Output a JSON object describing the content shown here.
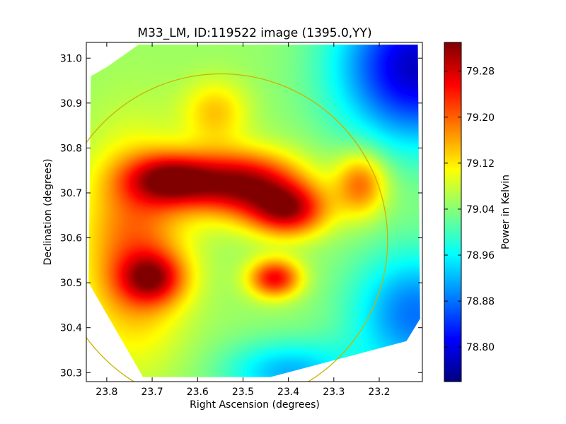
{
  "chart_data": {
    "type": "heatmap",
    "title": "M33_LM, ID:119522 image (1395.0,YY)",
    "xlabel": "Right Ascension (degrees)",
    "ylabel": "Declination (degrees)",
    "xlim": [
      23.845,
      23.105
    ],
    "ylim": [
      30.28,
      31.035
    ],
    "x_ticks": [
      {
        "value": 23.8,
        "label": "23.8"
      },
      {
        "value": 23.7,
        "label": "23.7"
      },
      {
        "value": 23.6,
        "label": "23.6"
      },
      {
        "value": 23.5,
        "label": "23.5"
      },
      {
        "value": 23.4,
        "label": "23.4"
      },
      {
        "value": 23.3,
        "label": "23.3"
      },
      {
        "value": 23.2,
        "label": "23.2"
      }
    ],
    "y_ticks": [
      {
        "value": 31.0,
        "label": "31.0"
      },
      {
        "value": 30.9,
        "label": "30.9"
      },
      {
        "value": 30.8,
        "label": "30.8"
      },
      {
        "value": 30.7,
        "label": "30.7"
      },
      {
        "value": 30.6,
        "label": "30.6"
      },
      {
        "value": 30.5,
        "label": "30.5"
      },
      {
        "value": 30.4,
        "label": "30.4"
      },
      {
        "value": 30.3,
        "label": "30.3"
      }
    ],
    "colorbar": {
      "label": "Power in Kelvin",
      "vmin": 78.74,
      "vmax": 79.33,
      "colormap": "jet",
      "ticks": [
        {
          "value": 79.28,
          "label": "79.28"
        },
        {
          "value": 79.2,
          "label": "79.20"
        },
        {
          "value": 79.12,
          "label": "79.12"
        },
        {
          "value": 79.04,
          "label": "79.04"
        },
        {
          "value": 78.96,
          "label": "78.96"
        },
        {
          "value": 78.88,
          "label": "78.88"
        },
        {
          "value": 78.8,
          "label": "78.80"
        }
      ]
    },
    "base_level": 79.05,
    "features": [
      {
        "ra": 23.5,
        "dec": 30.72,
        "value": 79.31,
        "sx": 0.09,
        "sy": 0.05
      },
      {
        "ra": 23.66,
        "dec": 30.73,
        "value": 79.27,
        "sx": 0.07,
        "sy": 0.04
      },
      {
        "ra": 23.4,
        "dec": 30.66,
        "value": 79.27,
        "sx": 0.06,
        "sy": 0.04
      },
      {
        "ra": 23.74,
        "dec": 30.58,
        "value": 79.2,
        "sx": 0.08,
        "sy": 0.16
      },
      {
        "ra": 23.43,
        "dec": 30.51,
        "value": 79.26,
        "sx": 0.04,
        "sy": 0.03
      },
      {
        "ra": 23.7,
        "dec": 30.51,
        "value": 79.23,
        "sx": 0.05,
        "sy": 0.04
      },
      {
        "ra": 23.56,
        "dec": 30.88,
        "value": 79.14,
        "sx": 0.05,
        "sy": 0.05
      },
      {
        "ra": 23.24,
        "dec": 30.72,
        "value": 79.2,
        "sx": 0.04,
        "sy": 0.05
      },
      {
        "ra": 23.12,
        "dec": 30.98,
        "value": 78.78,
        "sx": 0.12,
        "sy": 0.12
      },
      {
        "ra": 23.12,
        "dec": 30.43,
        "value": 78.88,
        "sx": 0.1,
        "sy": 0.1
      },
      {
        "ra": 23.4,
        "dec": 30.3,
        "value": 78.92,
        "sx": 0.1,
        "sy": 0.05
      }
    ],
    "data_region": [
      [
        23.835,
        30.96
      ],
      [
        23.8,
        30.98
      ],
      [
        23.73,
        31.03
      ],
      [
        23.115,
        31.03
      ],
      [
        23.11,
        30.42
      ],
      [
        23.14,
        30.37
      ],
      [
        23.44,
        30.29
      ],
      [
        23.72,
        30.29
      ],
      [
        23.84,
        30.5
      ]
    ],
    "circle": {
      "center_ra": 23.548,
      "center_dec": 30.595,
      "radius_dec": 0.37,
      "color": "#c8b400"
    },
    "grid": false
  }
}
